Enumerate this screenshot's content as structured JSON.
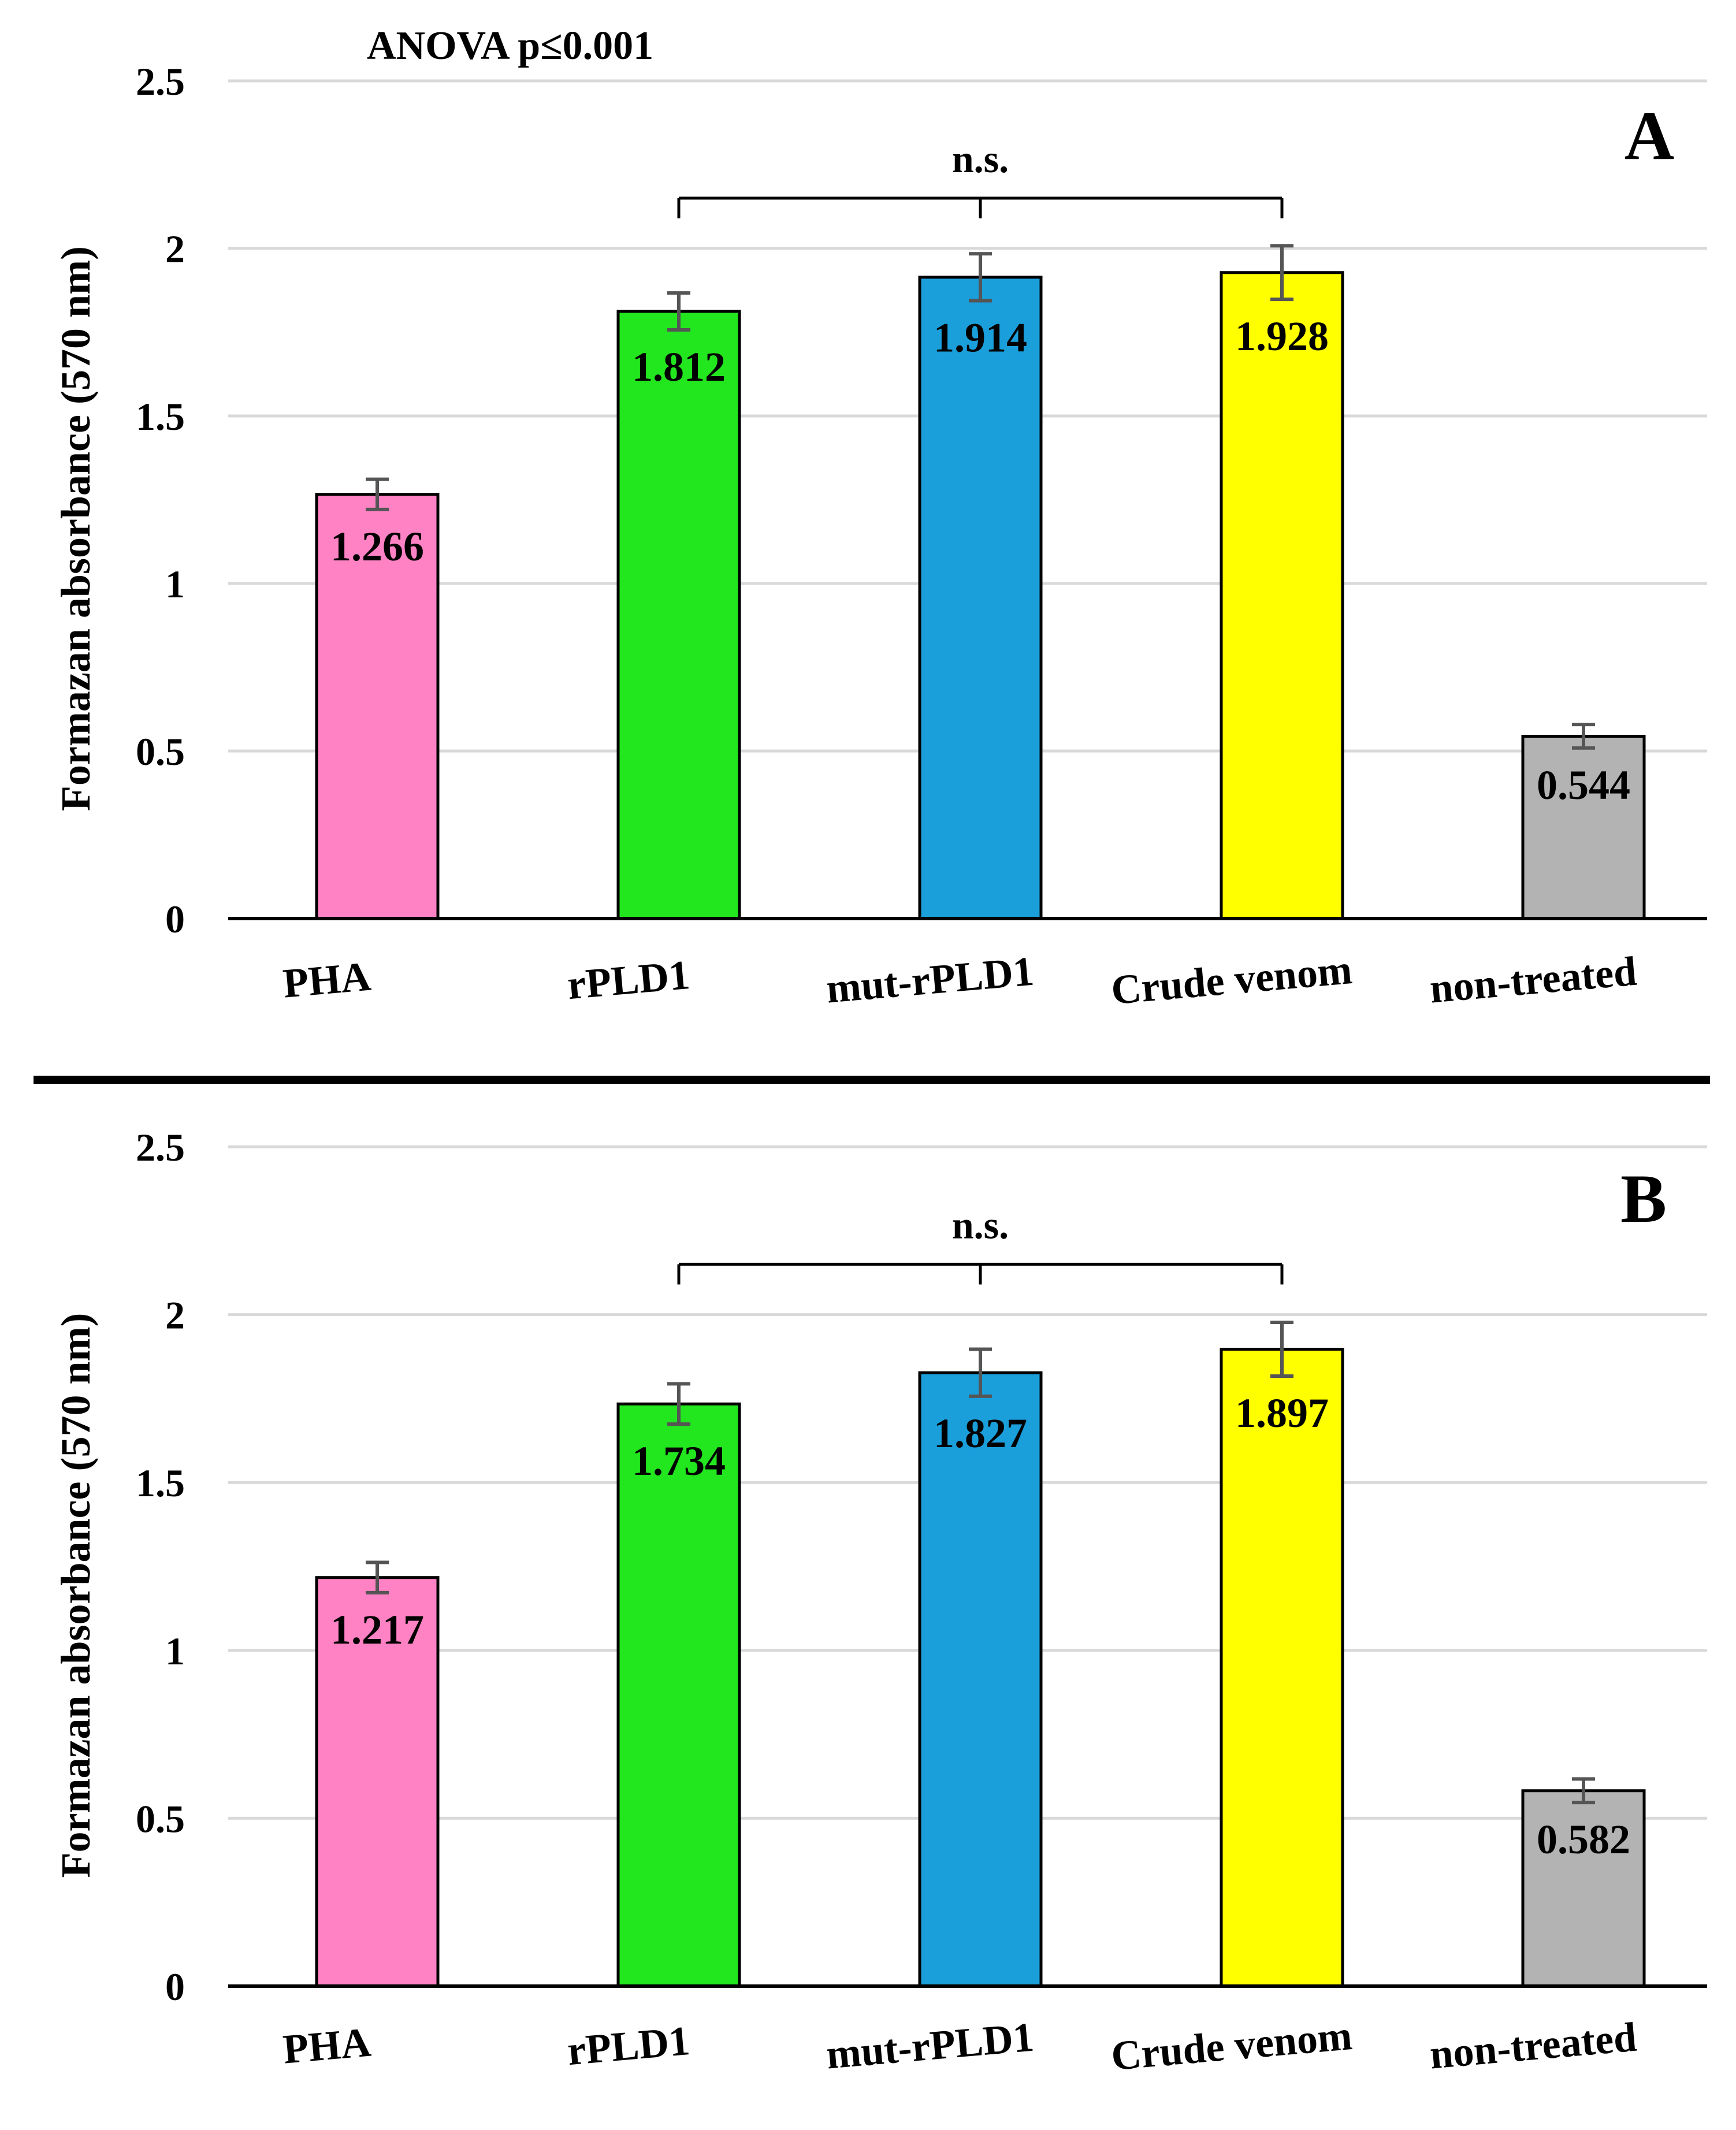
{
  "figure": {
    "annotation": "ANOVA  p≤0.001",
    "colors": {
      "bars": [
        "#ff82c4",
        "#22e61e",
        "#1a9fdb",
        "#ffff00",
        "#b3b3b3"
      ],
      "grid": "#d9d9d9",
      "axis": "#000000",
      "error_bar": "#555555",
      "separator": "#000000"
    }
  },
  "chart_data": [
    {
      "type": "bar",
      "panel_label": "A",
      "categories": [
        "PHA",
        "rPLD1",
        "mut-rPLD1",
        "Crude venom",
        "non-treated"
      ],
      "values": [
        1.266,
        1.812,
        1.914,
        1.928,
        0.544
      ],
      "value_labels": [
        "1.266",
        "1.812",
        "1.914",
        "1.928",
        "0.544"
      ],
      "error": [
        0.045,
        0.055,
        0.07,
        0.08,
        0.035
      ],
      "ylabel": "Formazan absorbance (570 nm)",
      "ylim": [
        0,
        2.5
      ],
      "yticks": [
        0,
        0.5,
        1,
        1.5,
        2,
        2.5
      ],
      "ytick_labels": [
        "0",
        "0.5",
        "1",
        "1.5",
        "2",
        "2.5"
      ],
      "grid": true,
      "significance": {
        "text": "n.s.",
        "from": 1,
        "to": 3,
        "mid": 2,
        "y": 2.15
      }
    },
    {
      "type": "bar",
      "panel_label": "B",
      "categories": [
        "PHA",
        "rPLD1",
        "mut-rPLD1",
        "Crude venom",
        "non-treated"
      ],
      "values": [
        1.217,
        1.734,
        1.827,
        1.897,
        0.582
      ],
      "value_labels": [
        "1.217",
        "1.734",
        "1.827",
        "1.897",
        "0.582"
      ],
      "error": [
        0.045,
        0.06,
        0.07,
        0.08,
        0.035
      ],
      "ylabel": "Formazan absorbance (570 nm)",
      "ylim": [
        0,
        2.5
      ],
      "yticks": [
        0,
        0.5,
        1,
        1.5,
        2,
        2.5
      ],
      "ytick_labels": [
        "0",
        "0.5",
        "1",
        "1.5",
        "2",
        "2.5"
      ],
      "grid": true,
      "significance": {
        "text": "n.s.",
        "from": 1,
        "to": 3,
        "mid": 2,
        "y": 2.15
      }
    }
  ]
}
